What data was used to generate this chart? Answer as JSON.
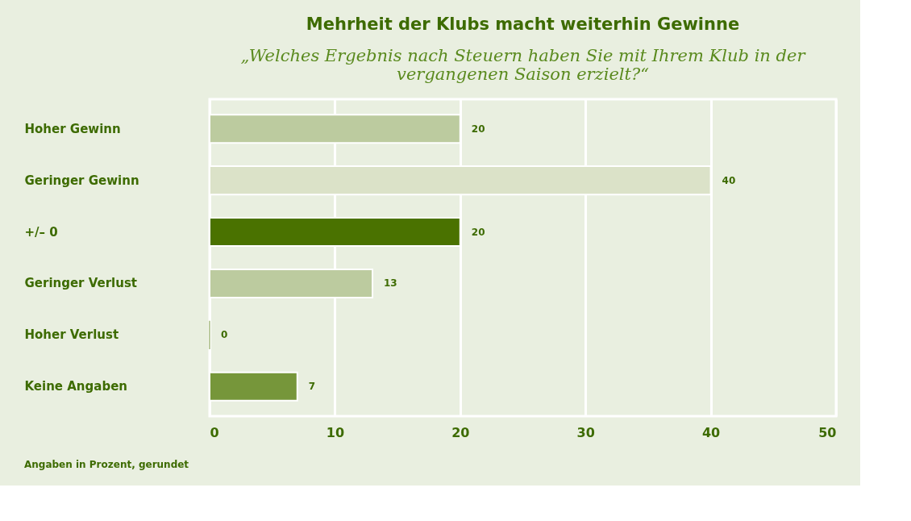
{
  "chart_data": {
    "type": "bar",
    "orientation": "horizontal",
    "title": "Mehrheit der Klubs macht weiterhin Gewinne",
    "subtitle": "„Welches Ergebnis nach Steuern haben Sie mit Ihrem Klub in der vergangenen Saison erzielt?“",
    "categories": [
      "Hoher Gewinn",
      "Geringer Gewinn",
      "+/– 0",
      "Geringer Verlust",
      "Hoher Verlust",
      "Keine Angaben"
    ],
    "values": [
      20,
      40,
      20,
      13,
      0,
      7
    ],
    "colors": [
      "#bccb9f",
      "#dbe2c8",
      "#4a7200",
      "#bccb9f",
      "#bccb9f",
      "#76963a"
    ],
    "xlim": [
      0,
      50
    ],
    "xticks": [
      0,
      10,
      20,
      30,
      40,
      50
    ],
    "grid": "x",
    "data_labels": true,
    "annotations": [
      "Angaben in Prozent, gerundet"
    ]
  }
}
